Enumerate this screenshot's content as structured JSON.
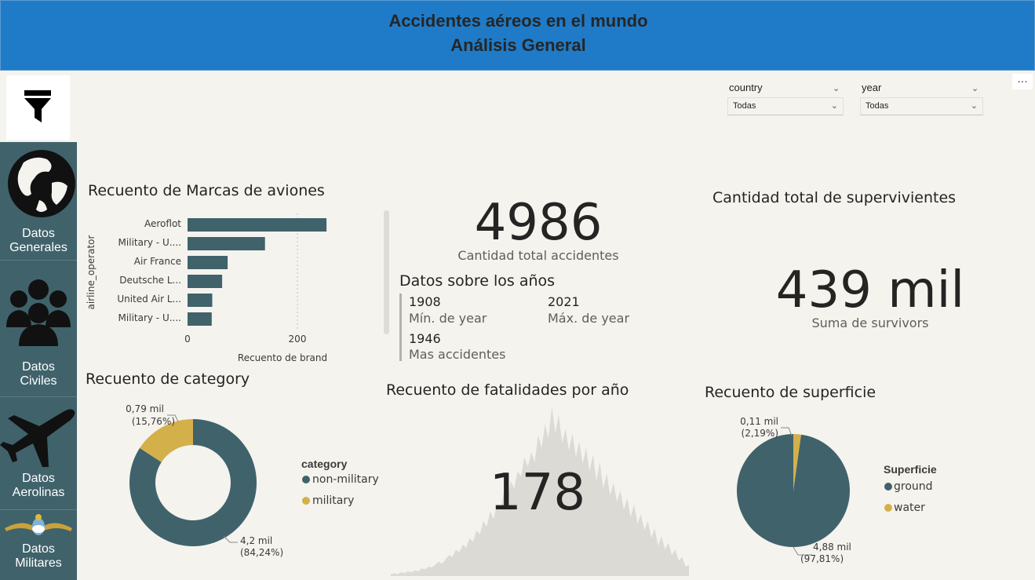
{
  "header": {
    "title_line1": "Accidentes aéreos en el mundo",
    "title_line2": "Análisis General"
  },
  "toolbar": {
    "more_label": "..."
  },
  "sidebar": {
    "items": [
      {
        "label_line1": "Datos",
        "label_line2": "Generales",
        "icon": "globe-icon"
      },
      {
        "label_line1": "Datos",
        "label_line2": "Civiles",
        "icon": "people-icon"
      },
      {
        "label_line1": "Datos",
        "label_line2": "Aerolinas",
        "icon": "airplane-icon"
      },
      {
        "label_line1": "Datos",
        "label_line2": "Militares",
        "icon": "military-emblem-icon"
      }
    ]
  },
  "slicers": [
    {
      "label": "country",
      "value": "Todas"
    },
    {
      "label": "year",
      "value": "Todas"
    }
  ],
  "brand_chart": {
    "title": "Recuento de Marcas de aviones",
    "ylabel": "airline_operator",
    "xlabel": "Recuento de brand",
    "ticks": [
      "0",
      "200"
    ]
  },
  "kpi_accidents": {
    "value": "4986",
    "label": "Cantidad total accidentes"
  },
  "years": {
    "title": "Datos sobre los años",
    "min_value": "1908",
    "min_label": "Mín. de year",
    "max_value": "2021",
    "max_label": "Máx. de year",
    "peak_value": "1946",
    "peak_label": "Mas accidentes"
  },
  "survivors": {
    "title": "Cantidad total de supervivientes",
    "value": "439 mil",
    "label": "Suma de survivors"
  },
  "category_chart": {
    "title": "Recuento de category",
    "legend_title": "category",
    "label_military_1": "0,79 mil",
    "label_military_2": "(15,76%)",
    "label_nonmil_1": "4,2 mil",
    "label_nonmil_2": "(84,24%)"
  },
  "fatalities": {
    "title": "Recuento de fatalidades por año",
    "value": "178"
  },
  "surface_chart": {
    "title": "Recuento de superficie",
    "legend_title": "Superficie",
    "label_water_1": "0,11 mil",
    "label_water_2": "(2,19%)",
    "label_ground_1": "4,88 mil",
    "label_ground_2": "(97,81%)"
  },
  "colors": {
    "teal": "#40626b",
    "gold": "#d4b04a",
    "header_blue": "#1f7bc7",
    "area_gray": "#dcdad4"
  },
  "chart_data": [
    {
      "type": "bar",
      "orientation": "horizontal",
      "title": "Recuento de Marcas de aviones",
      "xlabel": "Recuento de brand",
      "ylabel": "airline_operator",
      "categories": [
        "Aeroflot",
        "Military - U....",
        "Air France",
        "Deutsche L...",
        "United Air L...",
        "Military - U...."
      ],
      "values": [
        253,
        141,
        73,
        63,
        45,
        44
      ],
      "xlim": [
        0,
        280
      ],
      "xticks": [
        0,
        200
      ],
      "grid": true
    },
    {
      "type": "pie",
      "donut": true,
      "title": "Recuento de category",
      "series": [
        {
          "name": "non-military",
          "value": 4200,
          "percent": 84.24,
          "color": "#40626b"
        },
        {
          "name": "military",
          "value": 790,
          "percent": 15.76,
          "color": "#d4b04a"
        }
      ],
      "legend": "right"
    },
    {
      "type": "area",
      "title": "Recuento de fatalidades por año",
      "values": [
        2,
        3,
        2,
        4,
        3,
        5,
        4,
        6,
        5,
        8,
        7,
        10,
        9,
        12,
        15,
        13,
        18,
        22,
        20,
        28,
        25,
        33,
        30,
        40,
        36,
        48,
        44,
        58,
        52,
        68,
        60,
        75,
        70,
        88,
        80,
        100,
        92,
        110,
        105,
        125,
        115,
        130,
        120,
        148,
        135,
        160,
        145,
        178,
        150,
        170,
        140,
        155,
        132,
        150,
        125,
        142,
        118,
        135,
        110,
        128,
        100,
        120,
        92,
        108,
        85,
        98,
        78,
        90,
        70,
        82,
        62,
        75,
        55,
        65,
        48,
        58,
        40,
        50,
        32,
        42,
        28,
        35,
        22,
        28,
        16,
        20,
        10,
        12
      ],
      "ylim": [
        0,
        180
      ],
      "grid": false
    },
    {
      "type": "pie",
      "donut": false,
      "title": "Recuento de superficie",
      "series": [
        {
          "name": "ground",
          "value": 4880,
          "percent": 97.81,
          "color": "#40626b"
        },
        {
          "name": "water",
          "value": 110,
          "percent": 2.19,
          "color": "#d4b04a"
        }
      ],
      "legend": "right"
    }
  ]
}
